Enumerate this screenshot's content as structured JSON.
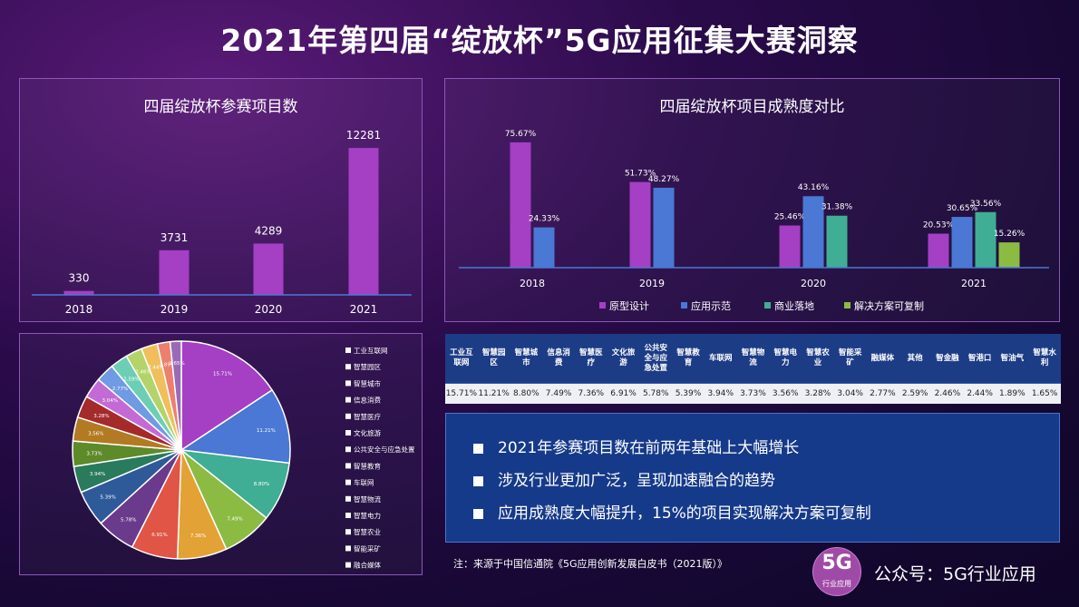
{
  "title": "2021年第四届“绽放杯”5G应用征集大赛洞察",
  "chart_data": [
    {
      "type": "bar",
      "title": "四届绽放杯参赛项目数",
      "categories": [
        "2018",
        "2019",
        "2020",
        "2021"
      ],
      "values": [
        330,
        3731,
        4289,
        12281
      ],
      "value_labels": [
        "330",
        "3731",
        "4289",
        "12281"
      ],
      "ylim": [
        0,
        13500
      ],
      "color": "#a53fc4"
    },
    {
      "type": "bar",
      "title": "四届绽放杯项目成熟度对比",
      "categories": [
        "2018",
        "2019",
        "2020",
        "2021"
      ],
      "series": [
        {
          "name": "原型设计",
          "color": "#a53fc4",
          "values": [
            75.67,
            51.73,
            25.46,
            20.53
          ],
          "labels": [
            "75.67%",
            "51.73%",
            "25.46%",
            "20.53%"
          ]
        },
        {
          "name": "应用示范",
          "color": "#4a78d4",
          "values": [
            24.33,
            48.27,
            43.16,
            30.65
          ],
          "labels": [
            "24.33%",
            "48.27%",
            "43.16%",
            "30.65%"
          ]
        },
        {
          "name": "商业落地",
          "color": "#3fae94",
          "values": [
            null,
            null,
            31.38,
            33.56
          ],
          "labels": [
            "",
            "",
            "31.38%",
            "33.56%"
          ]
        },
        {
          "name": "解决方案可复制",
          "color": "#8cbb44",
          "values": [
            null,
            null,
            null,
            15.26
          ],
          "labels": [
            "",
            "",
            "",
            "15.26%"
          ]
        }
      ],
      "ylim": [
        0,
        80
      ],
      "legend": "bottom"
    },
    {
      "type": "pie",
      "slices": [
        {
          "name": "工业互联网",
          "value": 15.71,
          "label": "15.71%",
          "color": "#a53fc4"
        },
        {
          "name": "智慧园区",
          "value": 11.21,
          "label": "11.21%",
          "color": "#4a78d4"
        },
        {
          "name": "智慧城市",
          "value": 8.8,
          "label": "8.80%",
          "color": "#3fae94"
        },
        {
          "name": "信息消费",
          "value": 7.49,
          "label": "7.49%",
          "color": "#8cbb44"
        },
        {
          "name": "智慧医疗",
          "value": 7.36,
          "label": "7.36%",
          "color": "#e3a236"
        },
        {
          "name": "文化旅游",
          "value": 6.91,
          "label": "6.91%",
          "color": "#e05545"
        },
        {
          "name": "公共安全与应急处置",
          "value": 5.78,
          "label": "5.78%",
          "color": "#6a3a8c"
        },
        {
          "name": "智慧教育",
          "value": 5.39,
          "label": "5.39%",
          "color": "#2f5a9a"
        },
        {
          "name": "车联网",
          "value": 3.94,
          "label": "3.94%",
          "color": "#2a7a5e"
        },
        {
          "name": "智慧物流",
          "value": 3.73,
          "label": "3.73%",
          "color": "#5e8a2a"
        },
        {
          "name": "智慧电力",
          "value": 3.56,
          "label": "3.56%",
          "color": "#b27a22"
        },
        {
          "name": "智慧农业",
          "value": 3.28,
          "label": "3.28%",
          "color": "#a52a2a"
        },
        {
          "name": "智能采矿",
          "value": 3.04,
          "label": "3.04%",
          "color": "#c36ad6"
        },
        {
          "name": "融合媒体",
          "value": 2.77,
          "label": "2.77%",
          "color": "#6f9ae4"
        },
        {
          "name": "其他",
          "value": 2.59,
          "label": "2.59%",
          "color": "#6ccfb4"
        },
        {
          "name": "智慧金融",
          "value": 2.46,
          "label": "2.46%",
          "color": "#b2d46a"
        },
        {
          "name": "智慧港口",
          "value": 2.44,
          "label": "2.44%",
          "color": "#f0bf5c"
        },
        {
          "name": "智慧油气",
          "value": 1.89,
          "label": "1.89%",
          "color": "#ee7e6e"
        },
        {
          "name": "智慧水利",
          "value": 1.65,
          "label": "1.65%",
          "color": "#9a6ab8"
        }
      ],
      "legend": "right",
      "legend_entries": [
        "工业互联网",
        "智慧园区",
        "智慧城市",
        "信息消费",
        "智慧医疗",
        "文化旅游",
        "公共安全与应急处置",
        "智慧教育",
        "车联网",
        "智慧物流",
        "智慧电力",
        "智慧农业",
        "智能采矿",
        "融合媒体"
      ]
    },
    {
      "type": "table",
      "headers": [
        "工业互联网",
        "智慧园区",
        "智慧城市",
        "信息消费",
        "智慧医疗",
        "文化旅游",
        "公共安全与应急处置",
        "智慧教育",
        "车联网",
        "智慧物流",
        "智慧电力",
        "智慧农业",
        "智能采矿",
        "融媒体",
        "其他",
        "智金融",
        "智港口",
        "智油气",
        "智慧水利"
      ],
      "values": [
        "15.71%",
        "11.21%",
        "8.80%",
        "7.49%",
        "7.36%",
        "6.91%",
        "5.78%",
        "5.39%",
        "3.94%",
        "3.73%",
        "3.56%",
        "3.28%",
        "3.04%",
        "2.77%",
        "2.59%",
        "2.46%",
        "2.44%",
        "1.89%",
        "1.65%"
      ]
    }
  ],
  "summary": [
    "2021年参赛项目数在前两年基础上大幅增长",
    "涉及行业更加广泛，呈现加速融合的趋势",
    "应用成熟度大幅提升，15%的项目实现解决方案可复制"
  ],
  "source": "注：来源于中国信通院《5G应用创新发展白皮书（2021版）》",
  "badge": {
    "big": "5G",
    "small": "行业应用"
  },
  "account": "公众号：5G行业应用"
}
